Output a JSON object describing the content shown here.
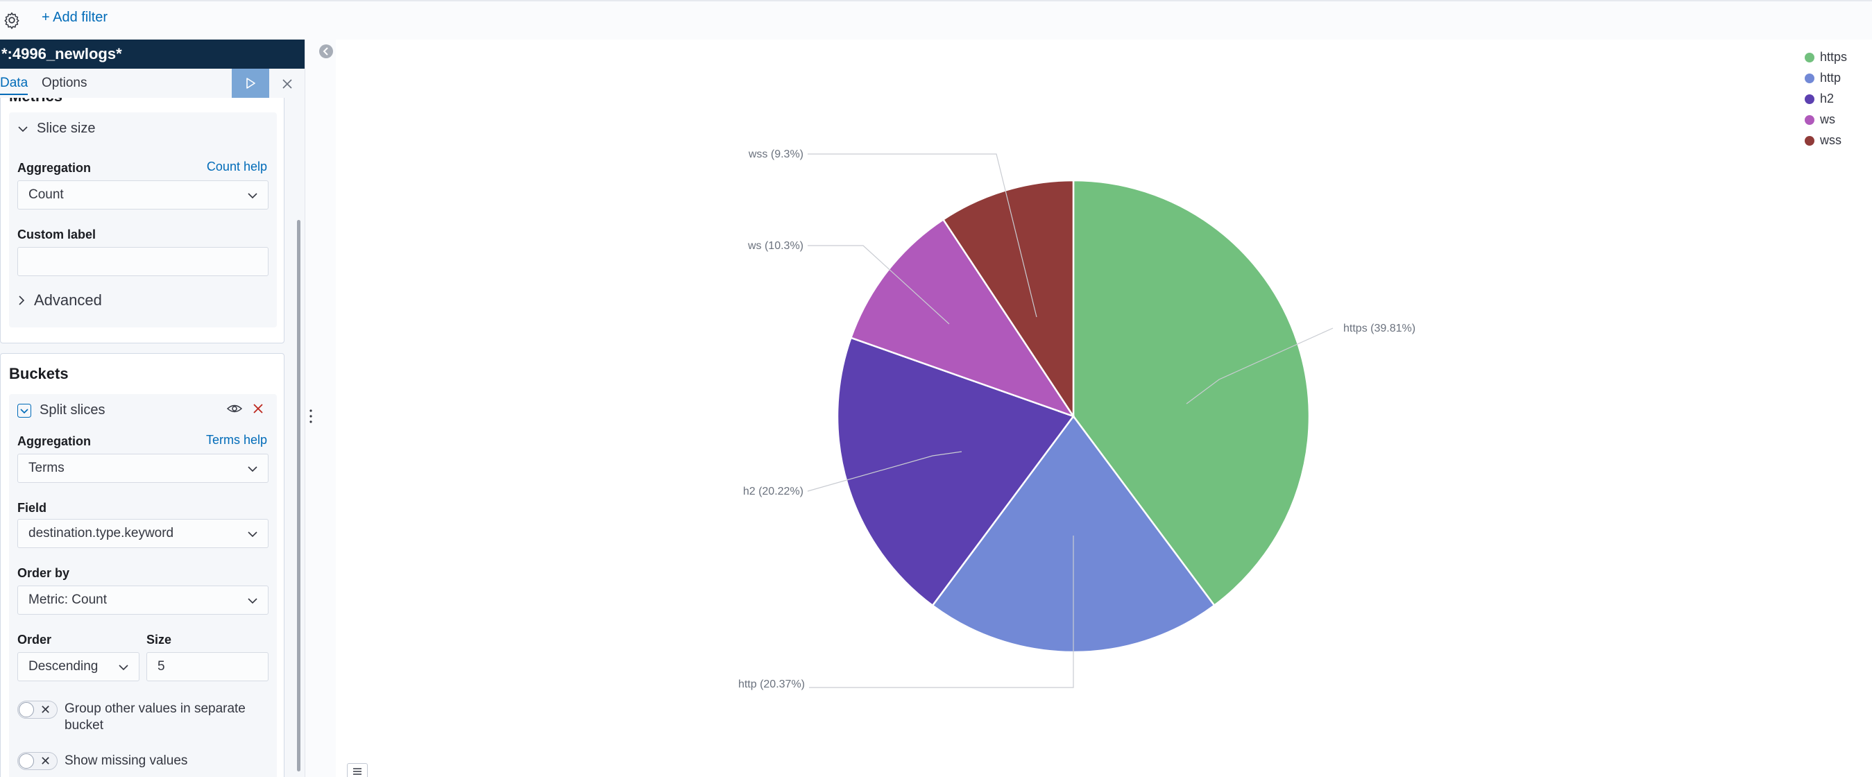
{
  "filterbar": {
    "add_filter": "+ Add filter"
  },
  "sidebar": {
    "index_pattern": "*:4996_newlogs*",
    "tabs": [
      {
        "label": "Data"
      },
      {
        "label": "Options"
      }
    ],
    "metrics": {
      "title": "Metrics",
      "accordion": "Slice size",
      "aggregation_label": "Aggregation",
      "aggregation_help": "Count help",
      "aggregation_value": "Count",
      "custom_label": "Custom label",
      "custom_label_value": "",
      "advanced": "Advanced"
    },
    "buckets": {
      "title": "Buckets",
      "accordion": "Split slices",
      "aggregation_label": "Aggregation",
      "aggregation_help": "Terms help",
      "aggregation_value": "Terms",
      "field_label": "Field",
      "field_value": "destination.type.keyword",
      "orderby_label": "Order by",
      "orderby_value": "Metric: Count",
      "order_label": "Order",
      "order_value": "Descending",
      "size_label": "Size",
      "size_value": "5",
      "group_other": "Group other values in separate bucket",
      "show_missing": "Show missing values"
    }
  },
  "chart_data": {
    "type": "pie",
    "slices": [
      {
        "label": "https",
        "value": 39.81,
        "callout": "https (39.81%)",
        "color": "#72c07e"
      },
      {
        "label": "http",
        "value": 20.37,
        "callout": "http (20.37%)",
        "color": "#7289d6"
      },
      {
        "label": "h2",
        "value": 20.22,
        "callout": "h2 (20.22%)",
        "color": "#5c40b0"
      },
      {
        "label": "ws",
        "value": 10.3,
        "callout": "ws (10.3%)",
        "color": "#b059bb"
      },
      {
        "label": "wss",
        "value": 9.3,
        "callout": "wss (9.3%)",
        "color": "#903b39"
      }
    ],
    "legend": [
      "https",
      "http",
      "h2",
      "ws",
      "wss"
    ],
    "legend_position": "top-right"
  }
}
